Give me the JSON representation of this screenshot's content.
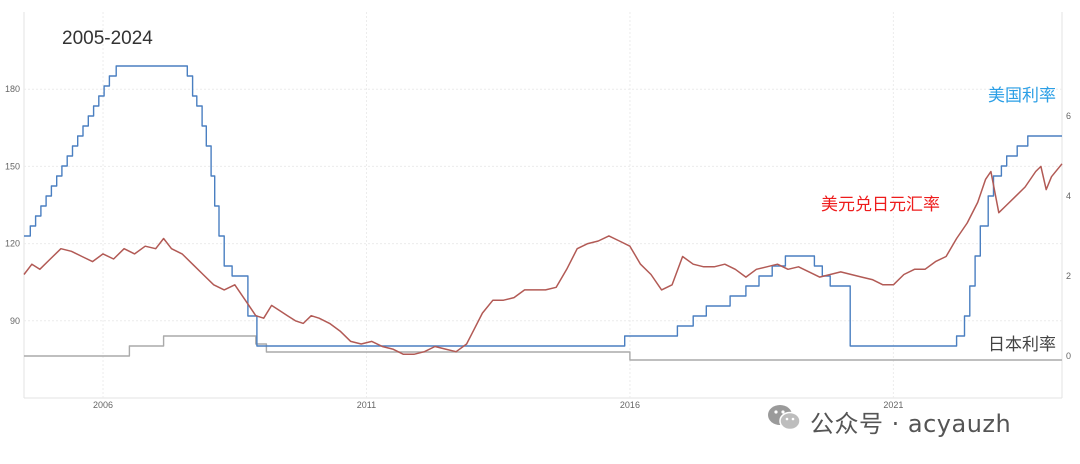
{
  "chart_data": {
    "type": "line",
    "title": "2005-2024",
    "xlabel": "",
    "ylabel": "",
    "xlim": [
      2004.5,
      2024.2
    ],
    "x_ticks": [
      "2006",
      "2011",
      "2016",
      "2021"
    ],
    "left_axis": {
      "ylim": [
        60,
        210
      ],
      "ticks": [
        "90",
        "120",
        "150",
        "180"
      ]
    },
    "right_axis": {
      "ylim": [
        -1.05,
        8.6
      ],
      "ticks": [
        "0",
        "2",
        "4",
        "6"
      ]
    },
    "grid": true,
    "series": [
      {
        "name": "美国利率",
        "axis": "right",
        "color": "#4a7fc1",
        "step": true,
        "points": [
          [
            2004.5,
            3.0
          ],
          [
            2004.62,
            3.25
          ],
          [
            2004.72,
            3.5
          ],
          [
            2004.82,
            3.75
          ],
          [
            2004.92,
            4.0
          ],
          [
            2005.02,
            4.25
          ],
          [
            2005.12,
            4.5
          ],
          [
            2005.22,
            4.75
          ],
          [
            2005.32,
            5.0
          ],
          [
            2005.42,
            5.25
          ],
          [
            2005.52,
            5.5
          ],
          [
            2005.62,
            5.75
          ],
          [
            2005.72,
            6.0
          ],
          [
            2005.82,
            6.25
          ],
          [
            2005.92,
            6.5
          ],
          [
            2006.02,
            6.75
          ],
          [
            2006.12,
            7.0
          ],
          [
            2006.25,
            7.25
          ],
          [
            2007.6,
            7.0
          ],
          [
            2007.7,
            6.5
          ],
          [
            2007.78,
            6.25
          ],
          [
            2007.88,
            5.75
          ],
          [
            2007.96,
            5.25
          ],
          [
            2008.05,
            4.5
          ],
          [
            2008.12,
            3.75
          ],
          [
            2008.2,
            3.0
          ],
          [
            2008.3,
            2.25
          ],
          [
            2008.45,
            2.0
          ],
          [
            2008.75,
            1.0
          ],
          [
            2008.92,
            0.25
          ],
          [
            2015.9,
            0.5
          ],
          [
            2016.9,
            0.75
          ],
          [
            2017.2,
            1.0
          ],
          [
            2017.45,
            1.25
          ],
          [
            2017.9,
            1.5
          ],
          [
            2018.2,
            1.75
          ],
          [
            2018.45,
            2.0
          ],
          [
            2018.7,
            2.25
          ],
          [
            2018.95,
            2.5
          ],
          [
            2019.5,
            2.25
          ],
          [
            2019.65,
            2.0
          ],
          [
            2019.8,
            1.75
          ],
          [
            2020.18,
            0.25
          ],
          [
            2022.2,
            0.5
          ],
          [
            2022.35,
            1.0
          ],
          [
            2022.45,
            1.75
          ],
          [
            2022.55,
            2.5
          ],
          [
            2022.65,
            3.25
          ],
          [
            2022.8,
            4.0
          ],
          [
            2022.9,
            4.5
          ],
          [
            2023.05,
            4.75
          ],
          [
            2023.15,
            5.0
          ],
          [
            2023.35,
            5.25
          ],
          [
            2023.55,
            5.5
          ],
          [
            2024.2,
            5.5
          ]
        ]
      },
      {
        "name": "美元兑日元汇率",
        "axis": "left",
        "color": "#b25a55",
        "step": false,
        "points": [
          [
            2004.5,
            108
          ],
          [
            2004.65,
            112
          ],
          [
            2004.8,
            110
          ],
          [
            2005.0,
            114
          ],
          [
            2005.2,
            118
          ],
          [
            2005.4,
            117
          ],
          [
            2005.6,
            115
          ],
          [
            2005.8,
            113
          ],
          [
            2006.0,
            116
          ],
          [
            2006.2,
            114
          ],
          [
            2006.4,
            118
          ],
          [
            2006.6,
            116
          ],
          [
            2006.8,
            119
          ],
          [
            2007.0,
            118
          ],
          [
            2007.15,
            122
          ],
          [
            2007.3,
            118
          ],
          [
            2007.5,
            116
          ],
          [
            2007.7,
            112
          ],
          [
            2007.9,
            108
          ],
          [
            2008.1,
            104
          ],
          [
            2008.3,
            102
          ],
          [
            2008.5,
            104
          ],
          [
            2008.7,
            98
          ],
          [
            2008.9,
            92
          ],
          [
            2009.05,
            91
          ],
          [
            2009.2,
            96
          ],
          [
            2009.35,
            94
          ],
          [
            2009.5,
            92
          ],
          [
            2009.65,
            90
          ],
          [
            2009.8,
            89
          ],
          [
            2009.95,
            92
          ],
          [
            2010.1,
            91
          ],
          [
            2010.3,
            89
          ],
          [
            2010.5,
            86
          ],
          [
            2010.7,
            82
          ],
          [
            2010.9,
            81
          ],
          [
            2011.1,
            82
          ],
          [
            2011.3,
            80
          ],
          [
            2011.5,
            79
          ],
          [
            2011.7,
            77
          ],
          [
            2011.9,
            77
          ],
          [
            2012.1,
            78
          ],
          [
            2012.3,
            80
          ],
          [
            2012.5,
            79
          ],
          [
            2012.7,
            78
          ],
          [
            2012.9,
            81
          ],
          [
            2013.0,
            85
          ],
          [
            2013.2,
            93
          ],
          [
            2013.4,
            98
          ],
          [
            2013.6,
            98
          ],
          [
            2013.8,
            99
          ],
          [
            2014.0,
            102
          ],
          [
            2014.2,
            102
          ],
          [
            2014.4,
            102
          ],
          [
            2014.6,
            103
          ],
          [
            2014.8,
            110
          ],
          [
            2015.0,
            118
          ],
          [
            2015.2,
            120
          ],
          [
            2015.4,
            121
          ],
          [
            2015.6,
            123
          ],
          [
            2015.8,
            121
          ],
          [
            2016.0,
            119
          ],
          [
            2016.2,
            112
          ],
          [
            2016.4,
            108
          ],
          [
            2016.6,
            102
          ],
          [
            2016.8,
            104
          ],
          [
            2017.0,
            115
          ],
          [
            2017.2,
            112
          ],
          [
            2017.4,
            111
          ],
          [
            2017.6,
            111
          ],
          [
            2017.8,
            112
          ],
          [
            2018.0,
            110
          ],
          [
            2018.2,
            107
          ],
          [
            2018.4,
            110
          ],
          [
            2018.6,
            111
          ],
          [
            2018.8,
            112
          ],
          [
            2019.0,
            110
          ],
          [
            2019.2,
            111
          ],
          [
            2019.4,
            109
          ],
          [
            2019.6,
            107
          ],
          [
            2019.8,
            108
          ],
          [
            2020.0,
            109
          ],
          [
            2020.2,
            108
          ],
          [
            2020.4,
            107
          ],
          [
            2020.6,
            106
          ],
          [
            2020.8,
            104
          ],
          [
            2021.0,
            104
          ],
          [
            2021.2,
            108
          ],
          [
            2021.4,
            110
          ],
          [
            2021.6,
            110
          ],
          [
            2021.8,
            113
          ],
          [
            2022.0,
            115
          ],
          [
            2022.2,
            122
          ],
          [
            2022.4,
            128
          ],
          [
            2022.6,
            136
          ],
          [
            2022.75,
            145
          ],
          [
            2022.85,
            148
          ],
          [
            2023.0,
            132
          ],
          [
            2023.15,
            135
          ],
          [
            2023.3,
            138
          ],
          [
            2023.5,
            142
          ],
          [
            2023.7,
            148
          ],
          [
            2023.8,
            150
          ],
          [
            2023.9,
            141
          ],
          [
            2024.0,
            146
          ],
          [
            2024.2,
            151
          ]
        ]
      },
      {
        "name": "日本利率",
        "axis": "right",
        "color": "#aaaaaa",
        "step": true,
        "points": [
          [
            2004.5,
            0.0
          ],
          [
            2006.5,
            0.25
          ],
          [
            2007.15,
            0.5
          ],
          [
            2008.9,
            0.3
          ],
          [
            2009.1,
            0.1
          ],
          [
            2016.0,
            -0.1
          ],
          [
            2024.2,
            -0.1
          ]
        ]
      }
    ],
    "annotations": [
      {
        "text": "美国利率",
        "color": "#2b9fe6"
      },
      {
        "text": "美元兑日元汇率",
        "color": "#ee1c1c"
      },
      {
        "text": "日本利率",
        "color": "#444444"
      }
    ]
  },
  "watermark": {
    "text": "公众号 · acyauzh",
    "icon": "wechat-icon"
  }
}
